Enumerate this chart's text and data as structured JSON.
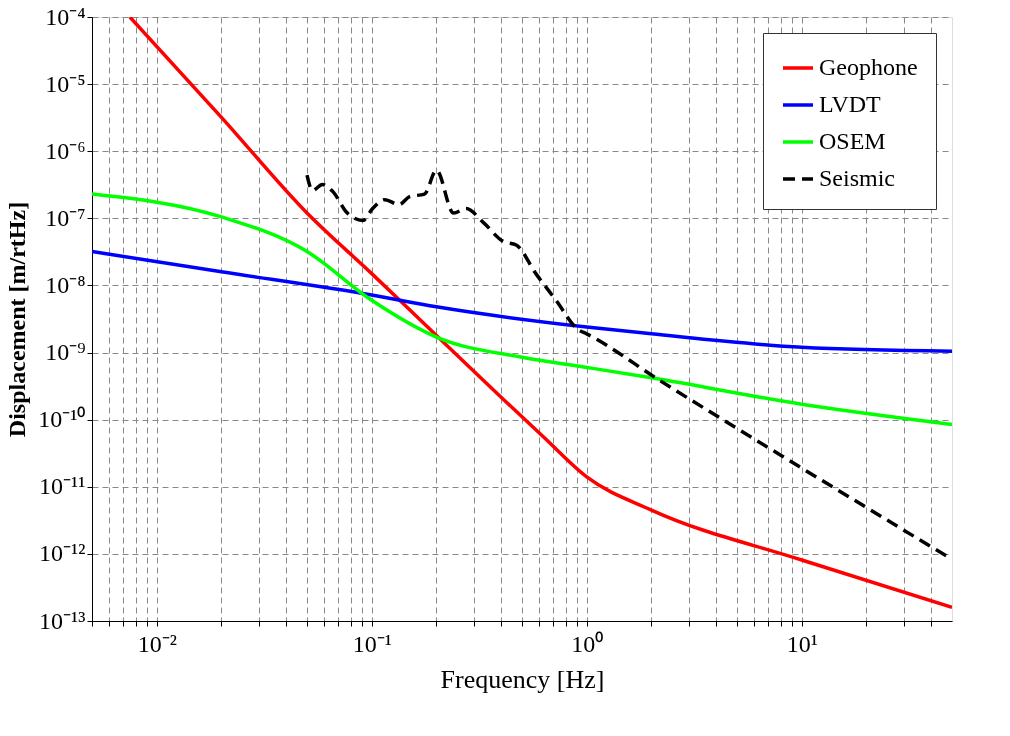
{
  "chart_data": {
    "type": "line",
    "xlabel": "Frequency [Hz]",
    "ylabel": "Displacement [m/rtHz]",
    "log": "xy",
    "grid": true,
    "legend": "top right",
    "marker": "none",
    "xlim": [
      0.005,
      50
    ],
    "ylim": [
      1e-13,
      0.0001
    ],
    "xticks": [
      {
        "value": 0.005,
        "label": null
      },
      {
        "value": 0.006,
        "label": null
      },
      {
        "value": 0.007,
        "label": null
      },
      {
        "value": 0.008,
        "label": null
      },
      {
        "value": 0.009,
        "label": null
      },
      {
        "value": 0.01,
        "label": "10⁻²"
      },
      {
        "value": 0.02,
        "label": null
      },
      {
        "value": 0.03,
        "label": null
      },
      {
        "value": 0.04,
        "label": null
      },
      {
        "value": 0.05,
        "label": null
      },
      {
        "value": 0.06,
        "label": null
      },
      {
        "value": 0.07,
        "label": null
      },
      {
        "value": 0.08,
        "label": null
      },
      {
        "value": 0.09,
        "label": null
      },
      {
        "value": 0.1,
        "label": "10⁻¹"
      },
      {
        "value": 0.2,
        "label": null
      },
      {
        "value": 0.3,
        "label": null
      },
      {
        "value": 0.4,
        "label": null
      },
      {
        "value": 0.5,
        "label": null
      },
      {
        "value": 0.6,
        "label": null
      },
      {
        "value": 0.7,
        "label": null
      },
      {
        "value": 0.8,
        "label": null
      },
      {
        "value": 0.9,
        "label": null
      },
      {
        "value": 1,
        "label": "10⁰"
      },
      {
        "value": 2,
        "label": null
      },
      {
        "value": 3,
        "label": null
      },
      {
        "value": 4,
        "label": null
      },
      {
        "value": 5,
        "label": null
      },
      {
        "value": 6,
        "label": null
      },
      {
        "value": 7,
        "label": null
      },
      {
        "value": 8,
        "label": null
      },
      {
        "value": 9,
        "label": null
      },
      {
        "value": 10,
        "label": "10¹"
      },
      {
        "value": 20,
        "label": null
      },
      {
        "value": 30,
        "label": null
      },
      {
        "value": 40,
        "label": null
      }
    ],
    "yticks": [
      {
        "value": 1e-13,
        "label": "10⁻¹³"
      },
      {
        "value": 1e-12,
        "label": "10⁻¹²"
      },
      {
        "value": 1e-11,
        "label": "10⁻¹¹"
      },
      {
        "value": 1e-10,
        "label": "10⁻¹⁰"
      },
      {
        "value": 1e-09,
        "label": "10⁻⁹"
      },
      {
        "value": 1e-08,
        "label": "10⁻⁸"
      },
      {
        "value": 1e-07,
        "label": "10⁻⁷"
      },
      {
        "value": 1e-06,
        "label": "10⁻⁶"
      },
      {
        "value": 1e-05,
        "label": "10⁻⁵"
      },
      {
        "value": 0.0001,
        "label": "10⁻⁴"
      }
    ],
    "series": [
      {
        "name": "Geophone",
        "color": "#ff0000",
        "line_style": "solid",
        "x": [
          0.0075,
          0.02,
          0.05,
          0.1,
          0.2,
          0.41,
          0.63,
          1,
          2,
          10,
          50
        ],
        "values": [
          0.0001,
          3.2e-06,
          1.2e-07,
          1.5e-08,
          1.8e-09,
          2e-10,
          5.5e-11,
          1.4e-11,
          4.5e-12,
          8.1e-13,
          1.6e-13
        ]
      },
      {
        "name": "LVDT",
        "color": "#0000ff",
        "line_style": "solid",
        "x": [
          0.005,
          0.02,
          0.1,
          0.2,
          1,
          2,
          10,
          50
        ],
        "values": [
          3.2e-08,
          1.6e-08,
          7.2e-09,
          4.8e-09,
          2.4e-09,
          1.9e-09,
          1.2e-09,
          1.05e-09
        ]
      },
      {
        "name": "OSEM",
        "color": "#00ff00",
        "line_style": "solid",
        "x": [
          0.005,
          0.02,
          0.05,
          0.1,
          0.2,
          0.5,
          1,
          2,
          10,
          50
        ],
        "values": [
          2.3e-07,
          1.05e-07,
          3.2e-08,
          6e-09,
          1.7e-09,
          8.5e-10,
          6e-10,
          4.2e-10,
          1.7e-10,
          8.5e-11
        ]
      },
      {
        "name": "Seismic",
        "color": "#000000",
        "line_style": "dashed",
        "x": [
          0.05,
          0.053,
          0.059,
          0.066,
          0.077,
          0.091,
          0.101,
          0.115,
          0.134,
          0.15,
          0.176,
          0.2,
          0.24,
          0.275,
          0.33,
          0.41,
          0.47,
          0.58,
          0.72,
          0.91,
          1,
          2.17,
          10,
          50
        ],
        "values": [
          4.4e-07,
          2.6e-07,
          3.2e-07,
          2.5e-07,
          1.2e-07,
          9.3e-08,
          1.4e-07,
          1.9e-07,
          1.6e-07,
          2.1e-07,
          2.3e-07,
          5.2e-07,
          1.2e-07,
          1.4e-07,
          8.7e-08,
          4.5e-08,
          4e-08,
          1.5e-08,
          6e-09,
          2.2e-09,
          1.9e-09,
          3.9e-10,
          1.9e-11,
          8.3e-13
        ]
      }
    ]
  }
}
